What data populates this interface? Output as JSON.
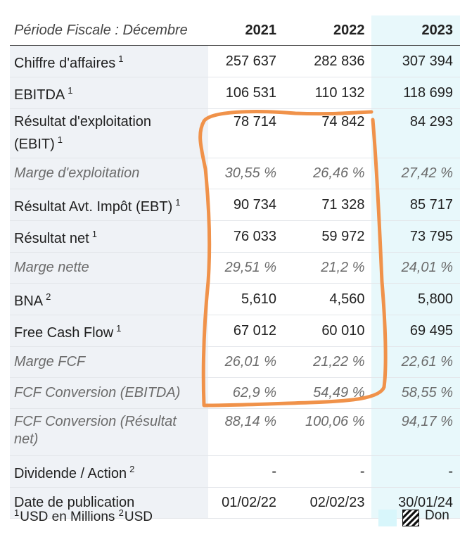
{
  "header": {
    "period_label": "Période Fiscale : Décembre",
    "years": [
      "2021",
      "2022",
      "2023"
    ]
  },
  "rows": [
    {
      "label": "Chiffre d'affaires",
      "note": "1",
      "values": [
        "257 637",
        "282 836",
        "307 394"
      ]
    },
    {
      "label": "EBITDA",
      "note": "1",
      "values": [
        "106 531",
        "110 132",
        "118 699"
      ]
    },
    {
      "label": "Résultat d'exploitation (EBIT)",
      "note": "1",
      "values": [
        "78 714",
        "74 842",
        "84 293"
      ]
    },
    {
      "label": "Marge d'exploitation",
      "note": "",
      "values": [
        "30,55 %",
        "26,46 %",
        "27,42 %"
      ]
    },
    {
      "label": "Résultat Avt. Impôt (EBT)",
      "note": "1",
      "values": [
        "90 734",
        "71 328",
        "85 717"
      ]
    },
    {
      "label": "Résultat net",
      "note": "1",
      "values": [
        "76 033",
        "59 972",
        "73 795"
      ]
    },
    {
      "label": "Marge nette",
      "note": "",
      "values": [
        "29,51 %",
        "21,2 %",
        "24,01 %"
      ]
    },
    {
      "label": "BNA",
      "note": "2",
      "values": [
        "5,610",
        "4,560",
        "5,800"
      ]
    },
    {
      "label": "Free Cash Flow",
      "note": "1",
      "values": [
        "67 012",
        "60 010",
        "69 495"
      ]
    },
    {
      "label": "Marge FCF",
      "note": "",
      "values": [
        "26,01 %",
        "21,22 %",
        "22,61 %"
      ]
    },
    {
      "label": "FCF Conversion (EBITDA)",
      "note": "",
      "values": [
        "62,9 %",
        "54,49 %",
        "58,55 %"
      ]
    },
    {
      "label": "FCF Conversion (Résultat net)",
      "note": "",
      "values": [
        "88,14 %",
        "100,06 %",
        "94,17 %"
      ]
    },
    {
      "label": "Dividende / Action",
      "note": "2",
      "values": [
        "-",
        "-",
        "-"
      ]
    },
    {
      "label": "Date de publication",
      "note": "",
      "values": [
        "01/02/22",
        "02/02/23",
        "30/01/24"
      ]
    }
  ],
  "footer": {
    "note1_num": "1",
    "note1_text": "USD en Millions ",
    "note2_num": "2",
    "note2_text": "USD",
    "legend_text": "Don"
  },
  "colors": {
    "highlight": "#f0924a",
    "estimate_bg": "#e8f8fb",
    "label_bg": "#eff2f6"
  }
}
